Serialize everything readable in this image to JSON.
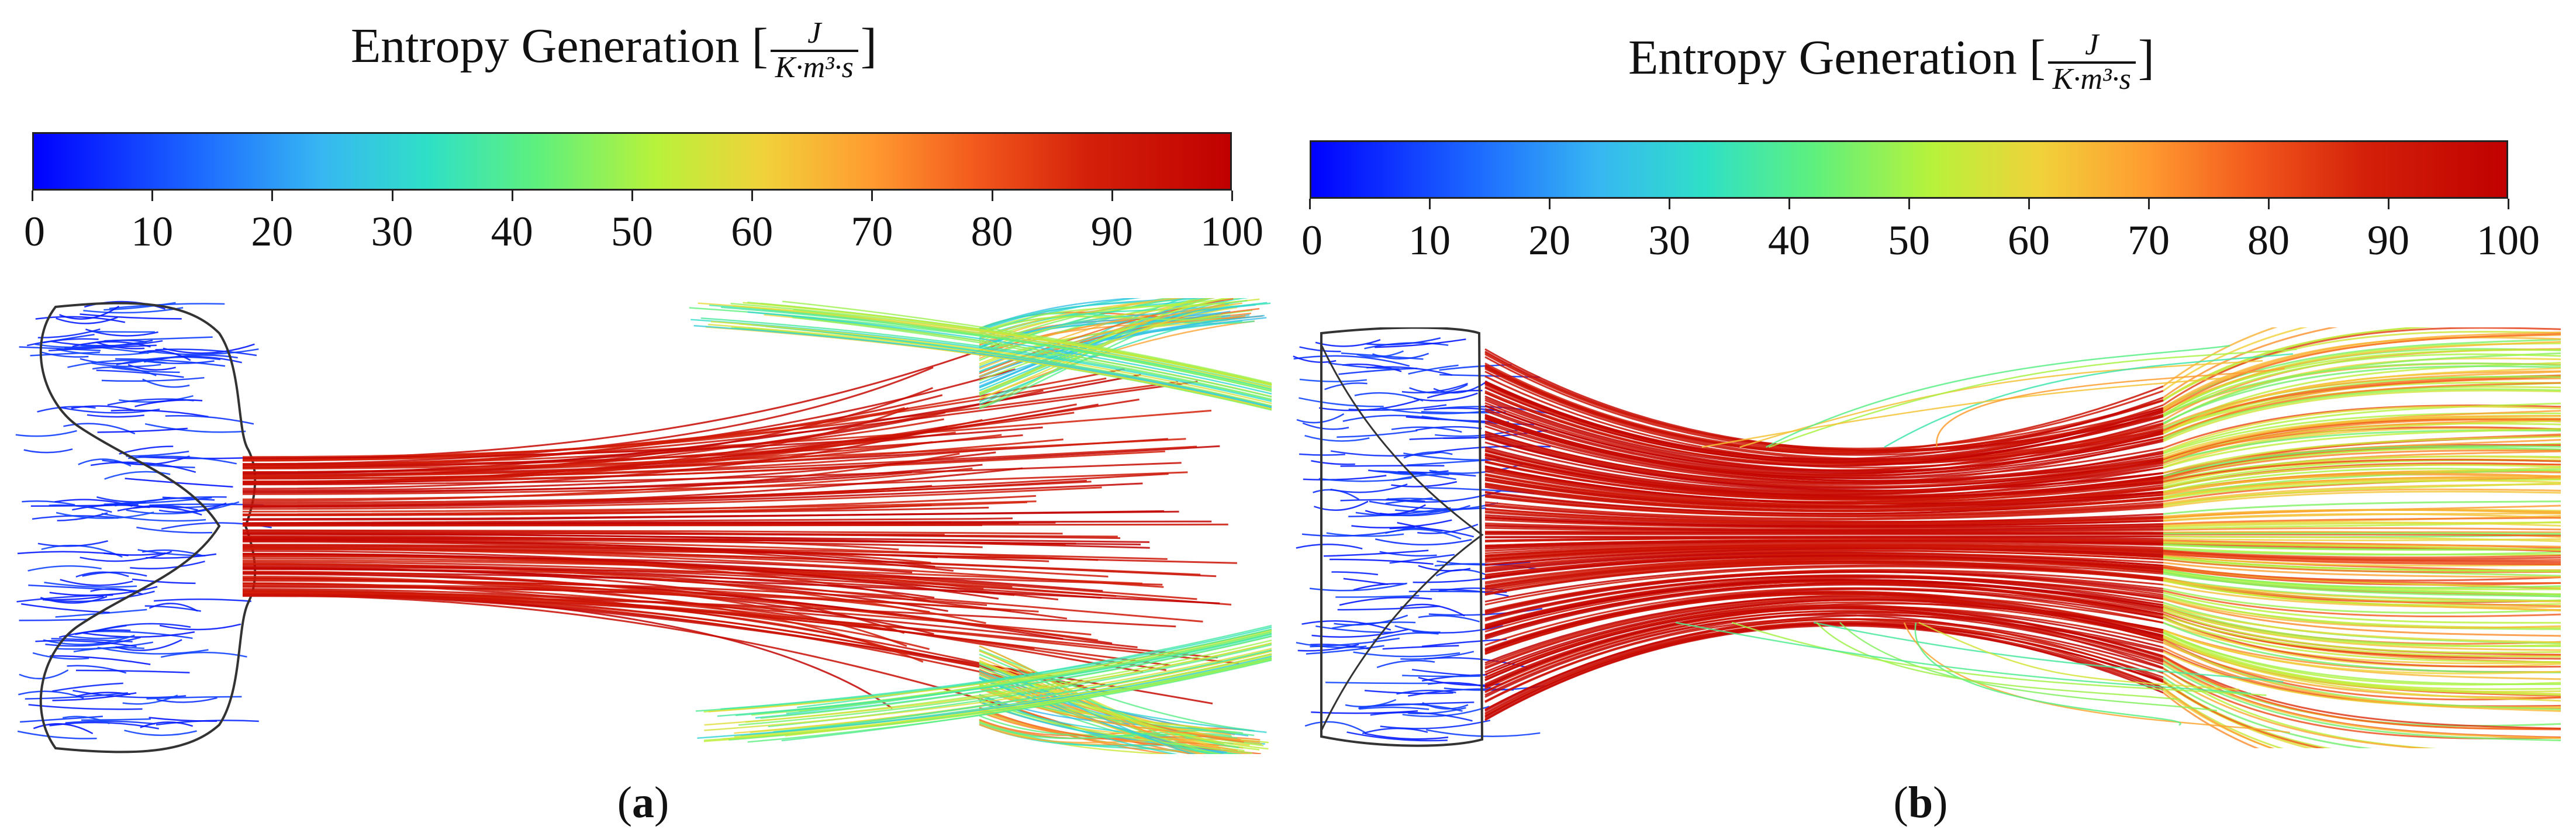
{
  "panels": [
    {
      "id": "a",
      "colorbar": {
        "title_text": "Entropy Generation [",
        "unit_numerator": "J",
        "unit_denominator": "K·m³·s",
        "title_close": "]",
        "ticks": [
          "0",
          "10",
          "20",
          "30",
          "40",
          "50",
          "60",
          "70",
          "80",
          "90",
          "100"
        ],
        "range": [
          0,
          100
        ]
      },
      "caption_open": "(",
      "caption_letter": "a",
      "caption_close": ")"
    },
    {
      "id": "b",
      "colorbar": {
        "title_text": "Entropy Generation [",
        "unit_numerator": "J",
        "unit_denominator": "K·m³·s",
        "title_close": "]",
        "ticks": [
          "0",
          "10",
          "20",
          "30",
          "40",
          "50",
          "60",
          "70",
          "80",
          "90",
          "100"
        ],
        "range": [
          0,
          100
        ]
      },
      "caption_open": "(",
      "caption_letter": "b",
      "caption_close": ")"
    }
  ],
  "colormap": [
    "#0000ff",
    "#1d6bff",
    "#37b7f2",
    "#2fe0c6",
    "#5ef07e",
    "#b8f23a",
    "#f1d23a",
    "#ff9b30",
    "#f2571c",
    "#d4210a",
    "#c00000"
  ]
}
